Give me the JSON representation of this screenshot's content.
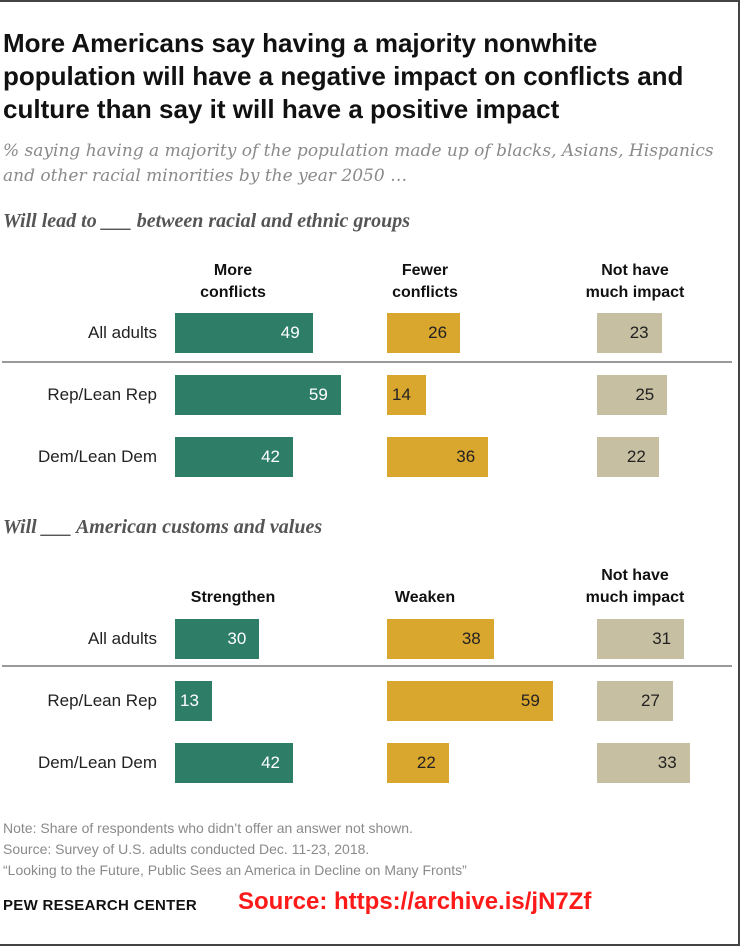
{
  "title": "More Americans say having a majority nonwhite population will have a negative impact on conflicts and culture than say it will have a positive impact",
  "subtitle": "% saying having a majority of the population made up of blacks, Asians, Hispanics and other racial minorities by the year 2050 …",
  "colors": {
    "green": "#2e7d67",
    "gold": "#d9a62e",
    "beige": "#c7bfa1"
  },
  "chart_data": [
    {
      "type": "bar",
      "title": "Will lead to ___ between racial and ethnic groups",
      "categories": [
        "All adults",
        "Rep/Lean Rep",
        "Dem/Lean Dem"
      ],
      "series": [
        {
          "name": "More conflicts",
          "lines": [
            "More",
            "conflicts"
          ],
          "color": "green",
          "label_color": "#ffffff",
          "values": [
            49,
            59,
            42
          ]
        },
        {
          "name": "Fewer conflicts",
          "lines": [
            "Fewer",
            "conflicts"
          ],
          "color": "gold",
          "label_color": "#222222",
          "values": [
            26,
            14,
            36
          ]
        },
        {
          "name": "Not have much impact",
          "lines": [
            "Not have",
            "much impact"
          ],
          "color": "beige",
          "label_color": "#222222",
          "values": [
            23,
            25,
            22
          ]
        }
      ]
    },
    {
      "type": "bar",
      "title": "Will ___ American customs and values",
      "categories": [
        "All adults",
        "Rep/Lean Rep",
        "Dem/Lean Dem"
      ],
      "series": [
        {
          "name": "Strengthen",
          "lines": [
            "Strengthen"
          ],
          "color": "green",
          "label_color": "#ffffff",
          "values": [
            30,
            13,
            42
          ]
        },
        {
          "name": "Weaken",
          "lines": [
            "Weaken"
          ],
          "color": "gold",
          "label_color": "#222222",
          "values": [
            38,
            59,
            22
          ]
        },
        {
          "name": "Not have much impact",
          "lines": [
            "Not have",
            "much impact"
          ],
          "color": "beige",
          "label_color": "#222222",
          "values": [
            31,
            27,
            33
          ]
        }
      ]
    }
  ],
  "notes": {
    "note": "Note: Share of respondents who didn’t offer an answer not shown.",
    "source": "Source: Survey of U.S. adults conducted Dec. 11-23, 2018.",
    "report": "“Looking to the Future, Public Sees an America in Decline on Many Fronts”"
  },
  "brand": "PEW RESEARCH CENTER",
  "source_stamp": "Source: https://archive.is/jN7Zf"
}
